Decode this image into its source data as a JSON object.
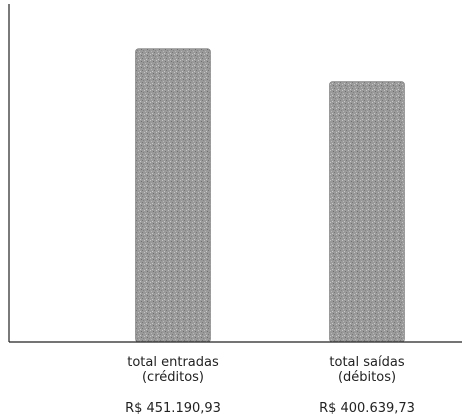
{
  "chart_data": {
    "type": "bar",
    "title": "",
    "xlabel": "",
    "ylabel": "",
    "categories": [
      [
        "total entradas",
        "(créditos)"
      ],
      [
        "total saídas",
        "(débitos)"
      ]
    ],
    "values": [
      451190.93,
      400639.73
    ],
    "value_labels": [
      "R$ 451.190,93",
      "R$ 400.639,73"
    ],
    "ylim": [
      0,
      520000
    ],
    "grid": false,
    "legend": "none",
    "bar_color": "#8f8f8f",
    "axis_color": "#222222"
  }
}
